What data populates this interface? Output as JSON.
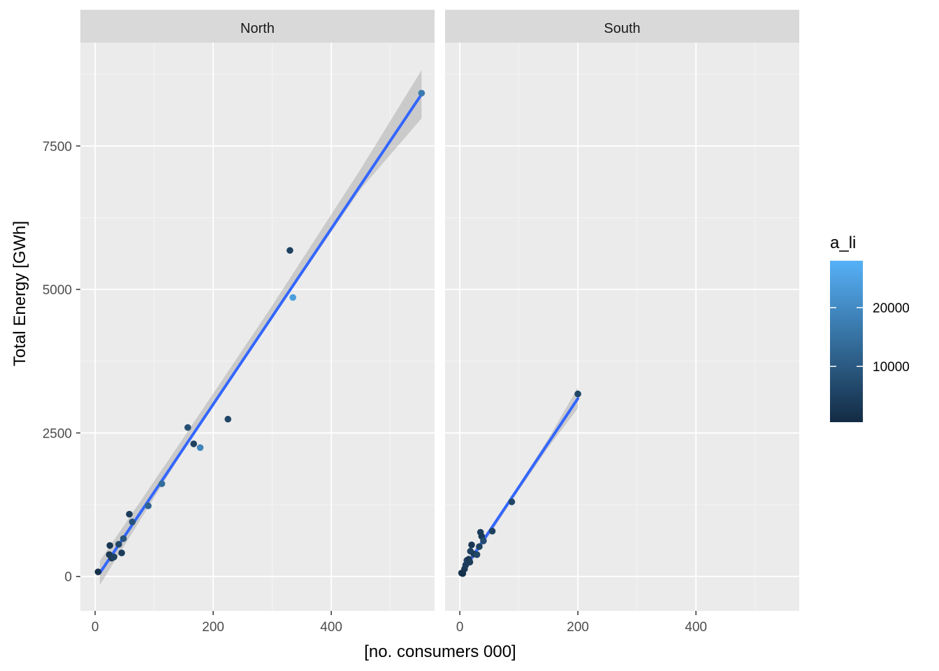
{
  "chart_data": {
    "type": "scatter",
    "xlabel": "[no. consumers 000]",
    "ylabel": "Total Energy [GWh]",
    "xlim": [
      -25,
      575
    ],
    "ylim": [
      -600,
      9300
    ],
    "x_ticks": [
      0,
      200,
      400
    ],
    "y_ticks": [
      0,
      2500,
      5000,
      7500
    ],
    "grid": true,
    "legend": {
      "title": "a_li",
      "type": "colorbar",
      "placement": "right",
      "range": [
        500,
        28000
      ],
      "ticks": [
        10000,
        20000
      ],
      "low_color": "#132b43",
      "high_color": "#56b1f7"
    },
    "facets": [
      {
        "label": "North",
        "points": [
          {
            "x": 5,
            "y": 80,
            "c": 2000
          },
          {
            "x": 25,
            "y": 540,
            "c": 3000
          },
          {
            "x": 24,
            "y": 380,
            "c": 3500
          },
          {
            "x": 28,
            "y": 320,
            "c": 4000
          },
          {
            "x": 32,
            "y": 340,
            "c": 5000
          },
          {
            "x": 45,
            "y": 410,
            "c": 4000
          },
          {
            "x": 40,
            "y": 560,
            "c": 6000
          },
          {
            "x": 48,
            "y": 660,
            "c": 9000
          },
          {
            "x": 58,
            "y": 1085,
            "c": 4000
          },
          {
            "x": 63,
            "y": 950,
            "c": 9000
          },
          {
            "x": 90,
            "y": 1230,
            "c": 12000
          },
          {
            "x": 113,
            "y": 1615,
            "c": 14000
          },
          {
            "x": 157,
            "y": 2595,
            "c": 8000
          },
          {
            "x": 167,
            "y": 2310,
            "c": 5000
          },
          {
            "x": 178,
            "y": 2245,
            "c": 19000
          },
          {
            "x": 225,
            "y": 2740,
            "c": 6000
          },
          {
            "x": 330,
            "y": 5680,
            "c": 5000
          },
          {
            "x": 335,
            "y": 4860,
            "c": 24000
          },
          {
            "x": 553,
            "y": 8420,
            "c": 17000
          }
        ],
        "fit": {
          "x_start": 8,
          "x_end": 553,
          "y_start": 60,
          "y_end": 8400
        },
        "band": {
          "x": [
            8,
            150,
            300,
            450,
            553
          ],
          "lower": [
            -150,
            2200,
            4500,
            6750,
            7980
          ],
          "upper": [
            270,
            2420,
            4720,
            7100,
            8820
          ]
        }
      },
      {
        "label": "South",
        "points": [
          {
            "x": 3,
            "y": 60,
            "c": 2000
          },
          {
            "x": 5,
            "y": 50,
            "c": 1500
          },
          {
            "x": 8,
            "y": 130,
            "c": 3000
          },
          {
            "x": 10,
            "y": 200,
            "c": 4000
          },
          {
            "x": 12,
            "y": 280,
            "c": 5000
          },
          {
            "x": 15,
            "y": 300,
            "c": 3000
          },
          {
            "x": 17,
            "y": 250,
            "c": 4000
          },
          {
            "x": 18,
            "y": 440,
            "c": 5000
          },
          {
            "x": 20,
            "y": 550,
            "c": 3000
          },
          {
            "x": 24,
            "y": 390,
            "c": 4000
          },
          {
            "x": 29,
            "y": 380,
            "c": 6000
          },
          {
            "x": 33,
            "y": 520,
            "c": 5000
          },
          {
            "x": 35,
            "y": 770,
            "c": 4000
          },
          {
            "x": 37,
            "y": 700,
            "c": 3500
          },
          {
            "x": 40,
            "y": 620,
            "c": 7000
          },
          {
            "x": 55,
            "y": 790,
            "c": 5000
          },
          {
            "x": 88,
            "y": 1300,
            "c": 6000
          },
          {
            "x": 200,
            "y": 3180,
            "c": 6000
          }
        ],
        "fit": {
          "x_start": 3,
          "x_end": 200,
          "y_start": 60,
          "y_end": 3100
        },
        "band": {
          "x": [
            3,
            50,
            100,
            150,
            200
          ],
          "lower": [
            -20,
            720,
            1500,
            2250,
            2930
          ],
          "upper": [
            150,
            830,
            1600,
            2400,
            3290
          ]
        }
      }
    ]
  }
}
